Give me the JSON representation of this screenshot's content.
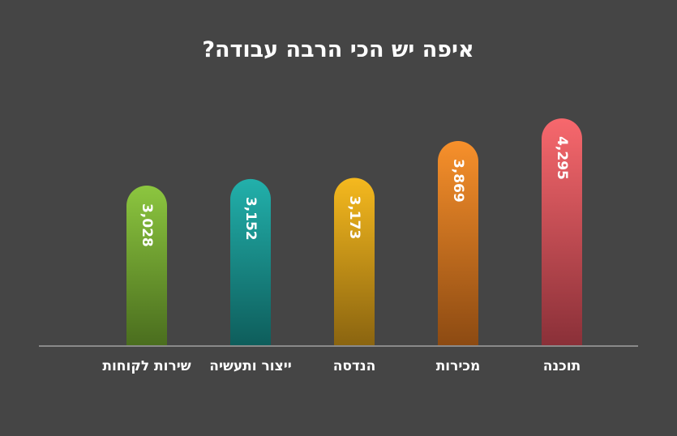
{
  "colors": {
    "background": "#454545",
    "axis": "#8a8a8a",
    "text": "#ffffff"
  },
  "chart_data": {
    "type": "bar",
    "orientation": "vertical",
    "title": "איפה יש הכי הרבה עבודה?",
    "direction": "rtl",
    "categories": [
      "תוכנה",
      "מכירות",
      "הנדסה",
      "ייצור ותעשיה",
      "שירות לקוחות"
    ],
    "values": [
      4295,
      3869,
      3173,
      3152,
      3028
    ],
    "value_labels": [
      "4,295",
      "3,869",
      "3,173",
      "3,152",
      "3,028"
    ],
    "bar_colors": [
      {
        "top": "#f7686d",
        "bottom": "#8a3038"
      },
      {
        "top": "#f7902b",
        "bottom": "#8c4a12"
      },
      {
        "top": "#f5b91e",
        "bottom": "#8a6410"
      },
      {
        "top": "#22b0ab",
        "bottom": "#0e5d5b"
      },
      {
        "top": "#8cc63f",
        "bottom": "#4a6d1e"
      }
    ],
    "rounded_tops": true,
    "value_labels_rotated": true,
    "grid": false,
    "legend": "none",
    "xlabel": "",
    "ylabel": ""
  }
}
